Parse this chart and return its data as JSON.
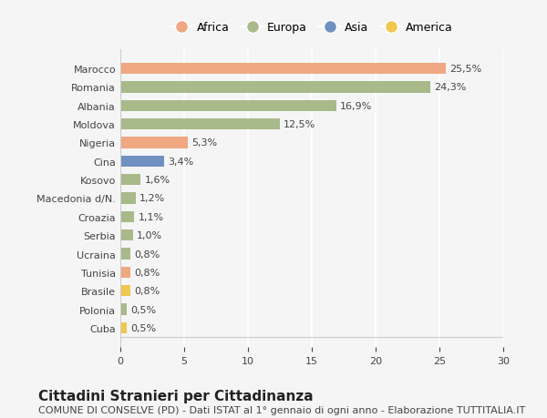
{
  "countries": [
    "Marocco",
    "Romania",
    "Albania",
    "Moldova",
    "Nigeria",
    "Cina",
    "Kosovo",
    "Macedonia d/N.",
    "Croazia",
    "Serbia",
    "Ucraina",
    "Tunisia",
    "Brasile",
    "Polonia",
    "Cuba"
  ],
  "values": [
    25.5,
    24.3,
    16.9,
    12.5,
    5.3,
    3.4,
    1.6,
    1.2,
    1.1,
    1.0,
    0.8,
    0.8,
    0.8,
    0.5,
    0.5
  ],
  "labels": [
    "25,5%",
    "24,3%",
    "16,9%",
    "12,5%",
    "5,3%",
    "3,4%",
    "1,6%",
    "1,2%",
    "1,1%",
    "1,0%",
    "0,8%",
    "0,8%",
    "0,8%",
    "0,5%",
    "0,5%"
  ],
  "continents": [
    "Africa",
    "Europa",
    "Europa",
    "Europa",
    "Africa",
    "Asia",
    "Europa",
    "Europa",
    "Europa",
    "Europa",
    "Europa",
    "Africa",
    "America",
    "Europa",
    "America"
  ],
  "colors": {
    "Africa": "#F0A882",
    "Europa": "#A8BA8A",
    "Asia": "#7090C0",
    "America": "#F0C850"
  },
  "legend_order": [
    "Africa",
    "Europa",
    "Asia",
    "America"
  ],
  "xlim": [
    0,
    30
  ],
  "xticks": [
    0,
    5,
    10,
    15,
    20,
    25,
    30
  ],
  "title": "Cittadini Stranieri per Cittadinanza",
  "subtitle": "COMUNE DI CONSELVE (PD) - Dati ISTAT al 1° gennaio di ogni anno - Elaborazione TUTTITALIA.IT",
  "bg_color": "#f5f5f5",
  "grid_color": "#ffffff",
  "bar_height": 0.6,
  "title_fontsize": 11,
  "subtitle_fontsize": 8,
  "label_fontsize": 8,
  "tick_fontsize": 8,
  "legend_fontsize": 9
}
